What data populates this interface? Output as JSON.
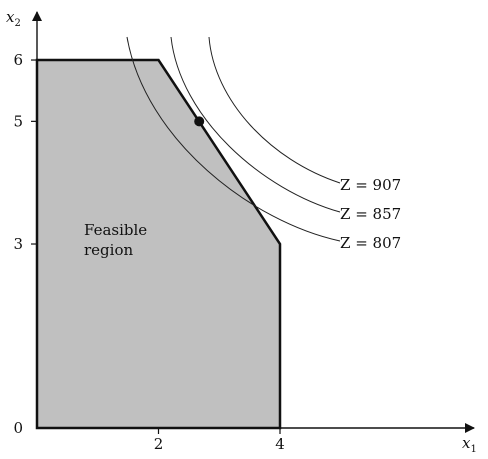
{
  "chart_data": {
    "type": "area",
    "xlabel": "x",
    "xlabel_sub": "1",
    "ylabel": "x",
    "ylabel_sub": "2",
    "x_ticks": [
      "2",
      "4"
    ],
    "y_ticks": [
      "0",
      "3",
      "5",
      "6"
    ],
    "xlim": [
      0,
      7.2
    ],
    "ylim": [
      0,
      6.8
    ],
    "feasible_region": {
      "label_lines": [
        "Feasible",
        "region"
      ],
      "vertices": [
        [
          0,
          0
        ],
        [
          0,
          6
        ],
        [
          2,
          6
        ],
        [
          4,
          3
        ],
        [
          4,
          0
        ]
      ],
      "fill": "#c0c0c0"
    },
    "optimal_point": {
      "x": 2.67,
      "y": 5
    },
    "iso_profit_lines": [
      {
        "label": "Z = 907",
        "value": 907
      },
      {
        "label": "Z = 857",
        "value": 857
      },
      {
        "label": "Z = 807",
        "value": 807
      }
    ]
  }
}
